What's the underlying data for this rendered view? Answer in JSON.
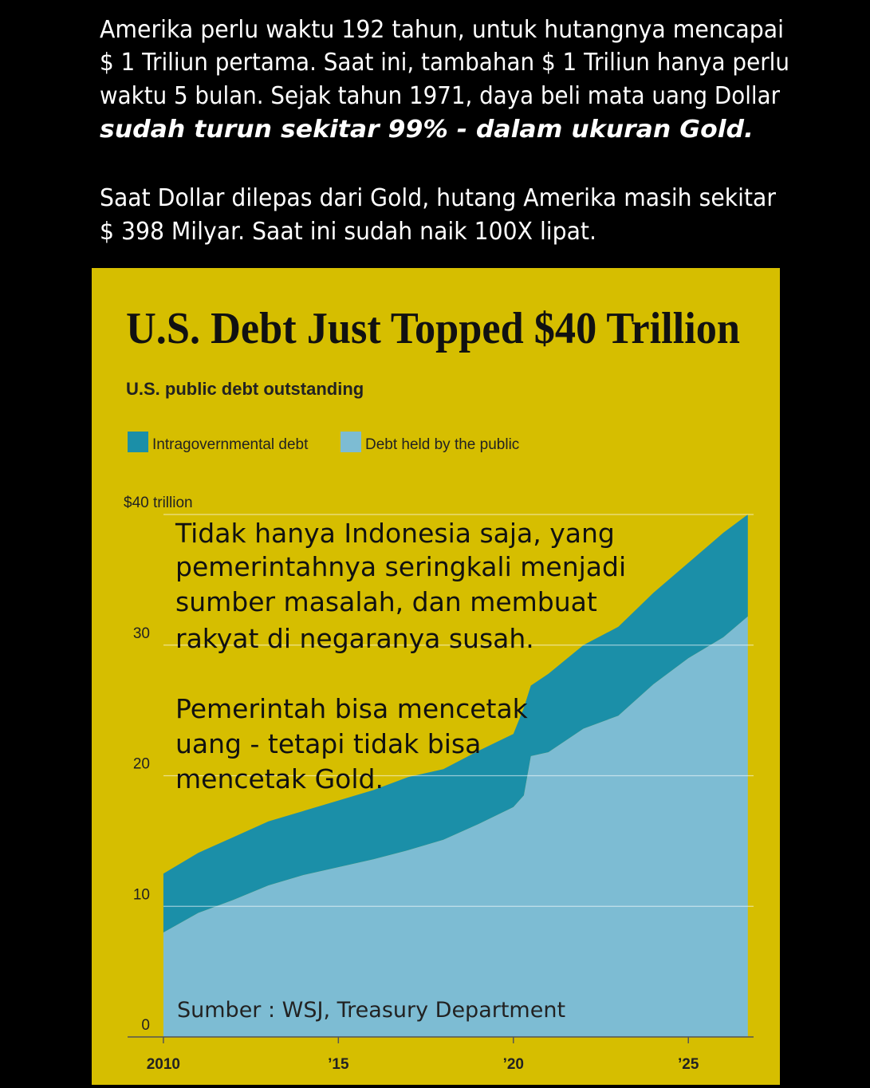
{
  "caption": {
    "lines": [
      "Amerika perlu waktu 192 tahun, untuk hutangnya mencapai",
      "$ 1 Triliun pertama. Saat ini, tambahan $ 1 Triliun hanya perlu",
      "waktu 5 bulan. Sejak tahun 1971, daya beli mata uang Dollar"
    ],
    "emphasis": "sudah turun sekitar 99% - dalam ukuran Gold.",
    "lines_2": [
      "Saat Dollar dilepas dari Gold, hutang Amerika masih sekitar",
      "$ 398 Milyar. Saat ini sudah naik 100X lipat."
    ]
  },
  "chart_data": {
    "type": "area",
    "stacked": true,
    "title": "U.S. Debt Just Topped $40 Trillion",
    "subtitle": "U.S. public debt outstanding",
    "x": [
      2010.0,
      2011.0,
      2012.0,
      2013.0,
      2014.0,
      2015.0,
      2016.0,
      2017.0,
      2018.0,
      2019.0,
      2020.0,
      2020.3,
      2020.5,
      2021.0,
      2022.0,
      2023.0,
      2024.0,
      2025.0,
      2026.0,
      2026.7
    ],
    "series": [
      {
        "name": "Intragovernmental debt",
        "color": "#1b8fa8",
        "values": [
          4.5,
          4.6,
          4.8,
          4.9,
          4.9,
          5.1,
          5.3,
          5.6,
          5.4,
          5.6,
          5.6,
          6.7,
          5.4,
          6.0,
          6.4,
          6.8,
          7.0,
          7.3,
          8.0,
          7.8
        ]
      },
      {
        "name": "Debt held by the public",
        "color": "#7dbcd3",
        "values": [
          8.0,
          9.5,
          10.5,
          11.6,
          12.4,
          13.0,
          13.6,
          14.3,
          15.1,
          16.3,
          17.6,
          18.5,
          21.5,
          21.8,
          23.6,
          24.6,
          27.0,
          29.0,
          30.6,
          32.2
        ]
      }
    ],
    "xlim": [
      2009,
      2027
    ],
    "xticks": [
      2010,
      {
        "value": 2015,
        "label": "’15"
      },
      {
        "value": 2020,
        "label": "’20"
      },
      {
        "value": 2025,
        "label": "’25"
      }
    ],
    "ylim": [
      0,
      40
    ],
    "yticks": [
      0,
      10,
      20,
      30,
      {
        "value": 40,
        "label": "$40 trillion"
      }
    ],
    "grid": true,
    "annotations": [
      {
        "lines": [
          "Tidak hanya Indonesia saja, yang",
          "pemerintahnya seringkali menjadi",
          "sumber masalah, dan membuat",
          "rakyat di negaranya susah."
        ]
      },
      {
        "lines": [
          "Pemerintah bisa mencetak",
          "uang - tetapi tidak bisa",
          "mencetak Gold."
        ]
      }
    ],
    "source": "Sumber : WSJ, Treasury Department"
  }
}
